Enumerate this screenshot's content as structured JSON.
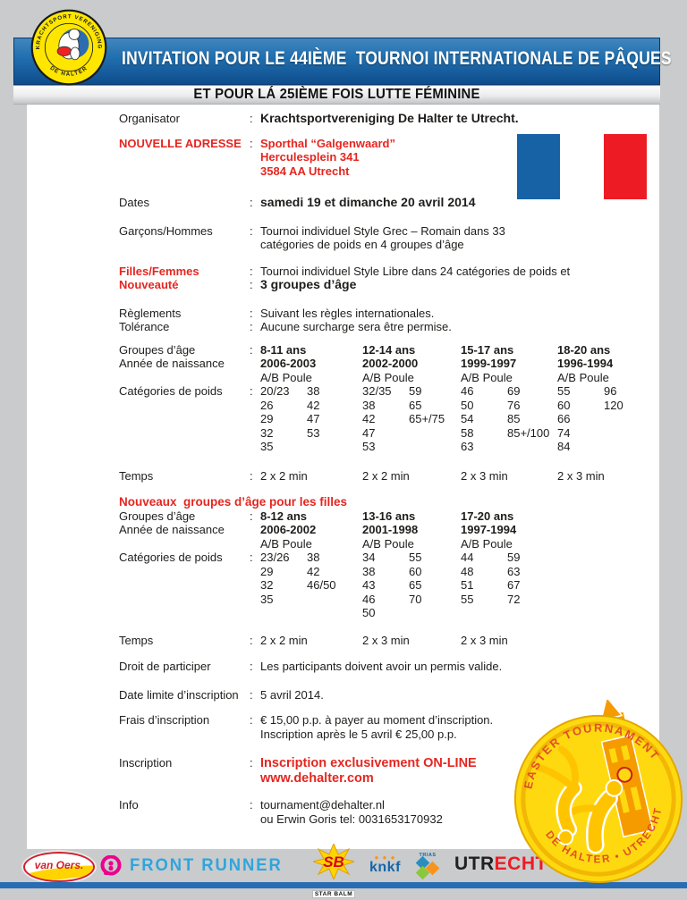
{
  "header": {
    "title": "INVITATION POUR LE 44IÈME  TOURNOI INTERNATIONALE DE PÂQUES",
    "subtitle": "ET POUR LÁ 25IÈME FOIS LUTTE FÉMININE",
    "band_color_top": "#2170b0",
    "band_color_bottom": "#0f4d8d"
  },
  "club_logo": {
    "arc_top": "KRACHTSPORT VERENIGING",
    "arc_bottom": "DE HALTER",
    "disc_color": "#ffe600",
    "inner_circle_color": "#2d6cb0"
  },
  "flag": {
    "blue": "#1762a5",
    "white": "#ffffff",
    "red": "#ed1c24"
  },
  "accent_red": "#e52620",
  "sections": [
    {
      "type": "row",
      "gap": 12,
      "label": "Organisator",
      "lines": [
        {
          "colon": ":",
          "text": "Krachtsportvereniging De Halter te Utrecht.",
          "class": "bold lg"
        }
      ]
    },
    {
      "type": "row",
      "gap": 20,
      "label": "NOUVELLE ADRESSE",
      "label_class": "red bold",
      "lines": [
        {
          "colon": ":",
          "text": "Sporthal “Galgenwaard”",
          "class": "red bold"
        },
        {
          "colon": "",
          "text": "Herculesplein 341",
          "class": "red bold"
        },
        {
          "colon": "",
          "text": "3584 AA Utrecht",
          "class": "red bold"
        }
      ]
    },
    {
      "type": "row",
      "gap": 16,
      "label": "Dates",
      "lines": [
        {
          "colon": ":",
          "text": "samedi 19 et dimanche 20 avril 2014",
          "class": "bold lg"
        }
      ]
    },
    {
      "type": "row",
      "gap": 14,
      "label": "Garçons/Hommes",
      "lines": [
        {
          "colon": ":",
          "text": "Tournoi individuel Style Grec – Romain dans 33"
        },
        {
          "colon": "",
          "text": "catégories de poids en 4 groupes d’âge"
        }
      ]
    },
    {
      "type": "row",
      "gap": 16,
      "labels": [
        {
          "text": "Filles/Femmes",
          "class": "red bold"
        },
        {
          "text": "Nouveauté",
          "class": "red bold"
        }
      ],
      "lines": [
        {
          "colon": ":",
          "text": "Tournoi individuel Style Libre dans 24 catégories de poids et"
        },
        {
          "colon": ":",
          "text": "3 groupes d’âge",
          "class": "bold lg"
        }
      ]
    },
    {
      "type": "row",
      "gap": 0,
      "label": "Règlements",
      "lines": [
        {
          "colon": ":",
          "text": "Suivant les règles internationales."
        }
      ]
    },
    {
      "type": "row",
      "gap": 10,
      "label": "Tolérance",
      "lines": [
        {
          "colon": ":",
          "text": "Aucune surcharge sera être permise."
        }
      ]
    },
    {
      "type": "table",
      "gap": 14,
      "gap_temps": 17,
      "colon": ":",
      "label_age": "Groupes d’âge",
      "label_birth": "Année de naissance",
      "label_weights": "Catégories de poids",
      "label_temps": "Temps",
      "poule": "A/B Poule",
      "columns": [
        {
          "age": "8-11 ans",
          "birth": "2006-2003",
          "a": [
            "20/23",
            "26",
            "29",
            "32",
            "35"
          ],
          "b": [
            "38",
            "42",
            "47",
            "53"
          ],
          "temps": "2 x 2 min"
        },
        {
          "age": "12-14 ans",
          "birth": "2002-2000",
          "a": [
            "32/35",
            "38",
            "42",
            "47",
            "53"
          ],
          "b": [
            "59",
            "65",
            "65+/75"
          ],
          "temps": "2 x 2 min"
        },
        {
          "age": "15-17 ans",
          "birth": "1999-1997",
          "a": [
            "46",
            "50",
            "54",
            "58",
            "63"
          ],
          "b": [
            "69",
            "76",
            "85",
            "85+/100"
          ],
          "temps": "2 x 3 min"
        },
        {
          "age": "18-20 ans",
          "birth": "1996-1994",
          "a": [
            "55",
            "60",
            "66",
            "74",
            "84"
          ],
          "b": [
            "96",
            "120"
          ],
          "temps": "2 x 3 min"
        }
      ]
    },
    {
      "type": "heading",
      "gap": 0,
      "text": "Nouveaux  groupes d’âge pour les filles",
      "class": "red bold"
    },
    {
      "type": "table",
      "gap": 14,
      "gap_temps": 15,
      "colon": ":",
      "label_age": "Groupes d’âge",
      "label_birth": "Année de naissance",
      "label_weights": "Catégories de poids",
      "label_temps": "Temps",
      "poule": "A/B Poule",
      "columns": [
        {
          "age": "8-12 ans",
          "birth": "2006-2002",
          "a": [
            "23/26",
            "29",
            "32",
            "35"
          ],
          "b": [
            "38",
            "42",
            "46/50"
          ],
          "temps": "2 x 2 min"
        },
        {
          "age": "13-16 ans",
          "birth": "2001-1998",
          "a": [
            "34",
            "38",
            "43",
            "46",
            "50"
          ],
          "b": [
            "55",
            "60",
            "65",
            "70"
          ],
          "temps": "2 x 3 min"
        },
        {
          "age": "17-20 ans",
          "birth": "1997-1994",
          "a": [
            "44",
            "48",
            "51",
            "55"
          ],
          "b": [
            "59",
            "63",
            "67",
            "72"
          ],
          "temps": "2 x 3 min"
        }
      ]
    },
    {
      "type": "row",
      "gap": 16,
      "label": "Droit de participer",
      "lines": [
        {
          "colon": ":",
          "text": "Les participants doivent avoir un permis valide."
        }
      ]
    },
    {
      "type": "row",
      "gap": 13,
      "label": "Date limite d’inscription",
      "lines": [
        {
          "colon": ":",
          "text": "5 avril 2014."
        }
      ]
    },
    {
      "type": "row",
      "gap": 17,
      "label": "Frais d’inscription",
      "lines": [
        {
          "colon": ":",
          "text": "€ 15,00 p.p. à payer au moment d’inscription."
        },
        {
          "colon": "",
          "text": "Inscription après le 5 avril € 25,00 p.p."
        }
      ]
    },
    {
      "type": "row",
      "gap": 13,
      "label": "Inscription",
      "lines": [
        {
          "colon": ":",
          "text": "Inscription exclusivement ON-LINE",
          "class": "red bold xl"
        },
        {
          "colon": "",
          "text": "www.dehalter.com",
          "class": "red bold xl",
          "interactable": true
        }
      ]
    },
    {
      "type": "row",
      "gap": 0,
      "label": "Info",
      "lines": [
        {
          "colon": ":",
          "text": "tournament@dehalter.nl",
          "interactable": true
        },
        {
          "colon": "",
          "text": "ou Erwin Goris tel: 0031653170932"
        }
      ]
    }
  ],
  "badge": {
    "arc_top": "EASTER TOURNAMENT",
    "arc_bottom": "DE HALTER  •  UTRECHT",
    "gold": "#ffd90f",
    "text_color": "#e0502a"
  },
  "footer": {
    "van_oers": {
      "text": "van Oers.",
      "red": "#cf1f2e",
      "yellow": "#ffd400"
    },
    "front_runner": {
      "text": "FRONT RUNNER",
      "blue": "#2fa5dd",
      "pink": "#ec008c"
    },
    "star_balm": {
      "monogram": "SB",
      "caption": "STAR BALM",
      "star_color": "#ffd400"
    },
    "knkf": {
      "crown": "● ● ●",
      "text": "knkf",
      "blue": "#1565a8"
    },
    "trias": {
      "text": "TRIAS"
    },
    "utrecht": {
      "black": "UTR",
      "red": "ECHT"
    }
  }
}
